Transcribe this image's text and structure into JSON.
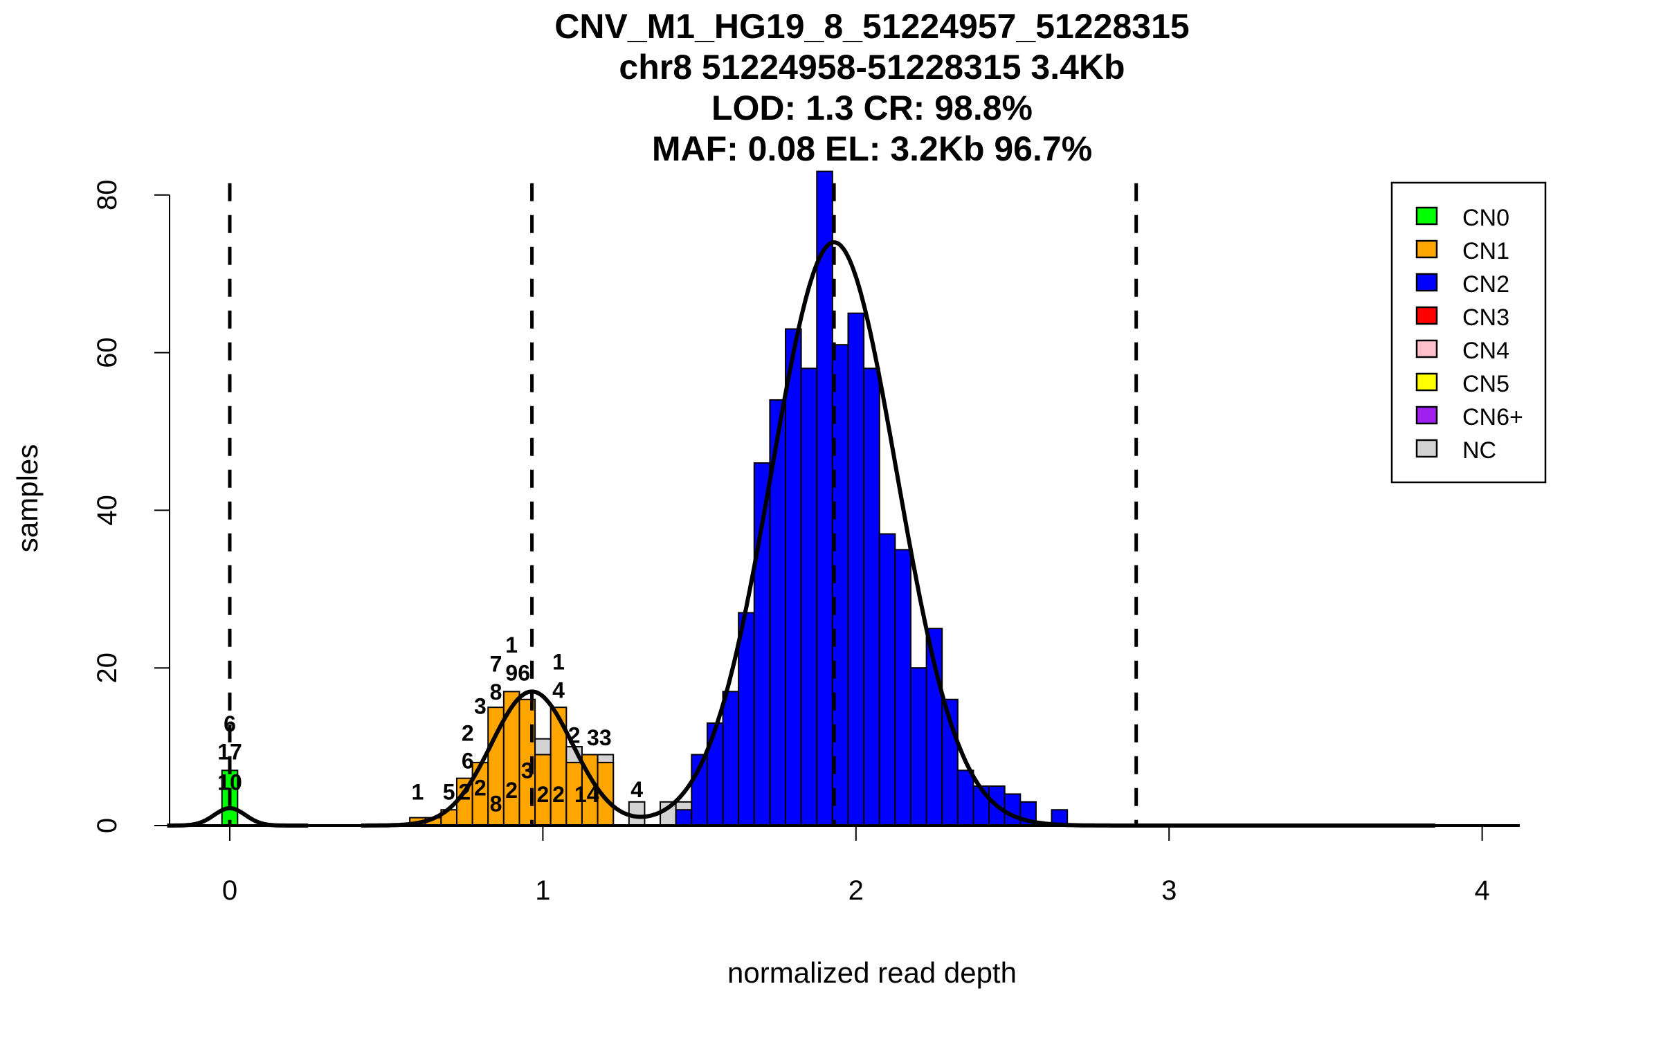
{
  "chart_data": {
    "type": "bar",
    "title_lines": [
      "CNV_M1_HG19_8_51224957_51228315",
      "chr8 51224958-51228315 3.4Kb",
      "LOD: 1.3 CR: 98.8%",
      "MAF: 0.08 EL: 3.2Kb 96.7%"
    ],
    "xlabel": "normalized read depth",
    "ylabel": "samples",
    "xlim": [
      -0.2,
      4.12
    ],
    "ylim": [
      0,
      80
    ],
    "xticks": [
      "0",
      "1",
      "2",
      "3",
      "4"
    ],
    "yticks": [
      "0",
      "20",
      "40",
      "60",
      "80"
    ],
    "bin_width": 0.05,
    "bars": [
      {
        "x": -0.025,
        "h": 7,
        "cls": "CN0"
      },
      {
        "x": 0.575,
        "h": 1,
        "cls": "CN1"
      },
      {
        "x": 0.625,
        "h": 1,
        "cls": "CN1"
      },
      {
        "x": 0.675,
        "h": 2,
        "cls": "CN1"
      },
      {
        "x": 0.725,
        "h": 6,
        "cls": "CN1"
      },
      {
        "x": 0.775,
        "h": 8,
        "cls": "CN1"
      },
      {
        "x": 0.825,
        "h": 15,
        "cls": "CN1"
      },
      {
        "x": 0.875,
        "h": 17,
        "cls": "CN1"
      },
      {
        "x": 0.925,
        "h": 16,
        "cls": "CN1"
      },
      {
        "x": 0.975,
        "h": 11,
        "cls": "NC"
      },
      {
        "x": 0.975,
        "h": 9,
        "cls": "CN1"
      },
      {
        "x": 1.025,
        "h": 15,
        "cls": "CN1"
      },
      {
        "x": 1.075,
        "h": 10,
        "cls": "NC"
      },
      {
        "x": 1.075,
        "h": 8,
        "cls": "CN1"
      },
      {
        "x": 1.125,
        "h": 9,
        "cls": "CN1"
      },
      {
        "x": 1.175,
        "h": 9,
        "cls": "NC"
      },
      {
        "x": 1.175,
        "h": 8,
        "cls": "CN1"
      },
      {
        "x": 1.275,
        "h": 3,
        "cls": "NC"
      },
      {
        "x": 1.375,
        "h": 3,
        "cls": "NC"
      },
      {
        "x": 1.425,
        "h": 3,
        "cls": "NC"
      },
      {
        "x": 1.425,
        "h": 2,
        "cls": "CN2"
      },
      {
        "x": 1.475,
        "h": 9,
        "cls": "CN2"
      },
      {
        "x": 1.525,
        "h": 13,
        "cls": "CN2"
      },
      {
        "x": 1.575,
        "h": 17,
        "cls": "CN2"
      },
      {
        "x": 1.625,
        "h": 27,
        "cls": "CN2"
      },
      {
        "x": 1.675,
        "h": 46,
        "cls": "CN2"
      },
      {
        "x": 1.725,
        "h": 54,
        "cls": "CN2"
      },
      {
        "x": 1.775,
        "h": 63,
        "cls": "CN2"
      },
      {
        "x": 1.825,
        "h": 58,
        "cls": "CN2"
      },
      {
        "x": 1.875,
        "h": 83,
        "cls": "CN2"
      },
      {
        "x": 1.925,
        "h": 61,
        "cls": "CN2"
      },
      {
        "x": 1.975,
        "h": 65,
        "cls": "CN2"
      },
      {
        "x": 2.025,
        "h": 58,
        "cls": "CN2"
      },
      {
        "x": 2.075,
        "h": 37,
        "cls": "CN2"
      },
      {
        "x": 2.125,
        "h": 35,
        "cls": "CN2"
      },
      {
        "x": 2.175,
        "h": 20,
        "cls": "CN2"
      },
      {
        "x": 2.225,
        "h": 25,
        "cls": "CN2"
      },
      {
        "x": 2.275,
        "h": 16,
        "cls": "CN2"
      },
      {
        "x": 2.325,
        "h": 7,
        "cls": "CN2"
      },
      {
        "x": 2.375,
        "h": 5,
        "cls": "CN2"
      },
      {
        "x": 2.425,
        "h": 5,
        "cls": "CN2"
      },
      {
        "x": 2.475,
        "h": 4,
        "cls": "CN2"
      },
      {
        "x": 2.525,
        "h": 3,
        "cls": "CN2"
      },
      {
        "x": 2.625,
        "h": 2,
        "cls": "CN2"
      }
    ],
    "mixture_components": [
      {
        "mean": 0.0,
        "sd": 0.05,
        "peak": 2.2
      },
      {
        "mean": 0.965,
        "sd": 0.13,
        "peak": 17
      },
      {
        "mean": 1.93,
        "sd": 0.2,
        "peak": 74
      }
    ],
    "curve_ranges": [
      [
        -0.2,
        0.25
      ],
      [
        0.42,
        3.85
      ]
    ],
    "dashed_lines_x": [
      0.0,
      0.965,
      1.93,
      2.895
    ],
    "annotations": [
      {
        "x": 0.0,
        "y": 10.2,
        "t": "6"
      },
      {
        "x": 0.0,
        "y": 8.4,
        "t": "17"
      },
      {
        "x": 0.0,
        "y": 4.5,
        "t": "10"
      },
      {
        "x": 0.6,
        "y": 3.3,
        "t": "1"
      },
      {
        "x": 0.7,
        "y": 3.3,
        "t": "5"
      },
      {
        "x": 0.75,
        "y": 3.3,
        "t": "2"
      },
      {
        "x": 0.8,
        "y": 3.8,
        "t": "2"
      },
      {
        "x": 0.76,
        "y": 6.2,
        "t": "6"
      },
      {
        "x": 0.76,
        "y": 8.3,
        "t": "2"
      },
      {
        "x": 0.8,
        "y": 9.8,
        "t": "3"
      },
      {
        "x": 0.85,
        "y": 1.8,
        "t": "8"
      },
      {
        "x": 0.85,
        "y": 17.6,
        "t": "7"
      },
      {
        "x": 0.85,
        "y": 16,
        "t": "8"
      },
      {
        "x": 0.9,
        "y": 20,
        "t": "1"
      },
      {
        "x": 0.92,
        "y": 18.4,
        "t": "96"
      },
      {
        "x": 0.9,
        "y": 3.5,
        "t": "2"
      },
      {
        "x": 0.95,
        "y": 6.0,
        "t": "3"
      },
      {
        "x": 1.0,
        "y": 3.0,
        "t": "2"
      },
      {
        "x": 1.05,
        "y": 18.2,
        "t": "1"
      },
      {
        "x": 1.05,
        "y": 16.2,
        "t": "4"
      },
      {
        "x": 1.05,
        "y": 3.0,
        "t": "2"
      },
      {
        "x": 1.1,
        "y": 10.5,
        "t": "2"
      },
      {
        "x": 1.14,
        "y": 3.0,
        "t": "14"
      },
      {
        "x": 1.18,
        "y": 10.2,
        "t": "33"
      },
      {
        "x": 1.3,
        "y": 3.6,
        "t": "4"
      }
    ],
    "legend": {
      "placement": "top-right",
      "entries": [
        {
          "label": "CN0",
          "color": "#00ff00"
        },
        {
          "label": "CN1",
          "color": "#ffa500"
        },
        {
          "label": "CN2",
          "color": "#0000ff"
        },
        {
          "label": "CN3",
          "color": "#ff0000"
        },
        {
          "label": "CN4",
          "color": "#ffc0cb"
        },
        {
          "label": "CN5",
          "color": "#ffff00"
        },
        {
          "label": "CN6+",
          "color": "#a020f0"
        },
        {
          "label": "NC",
          "color": "#d3d3d3"
        }
      ]
    }
  }
}
